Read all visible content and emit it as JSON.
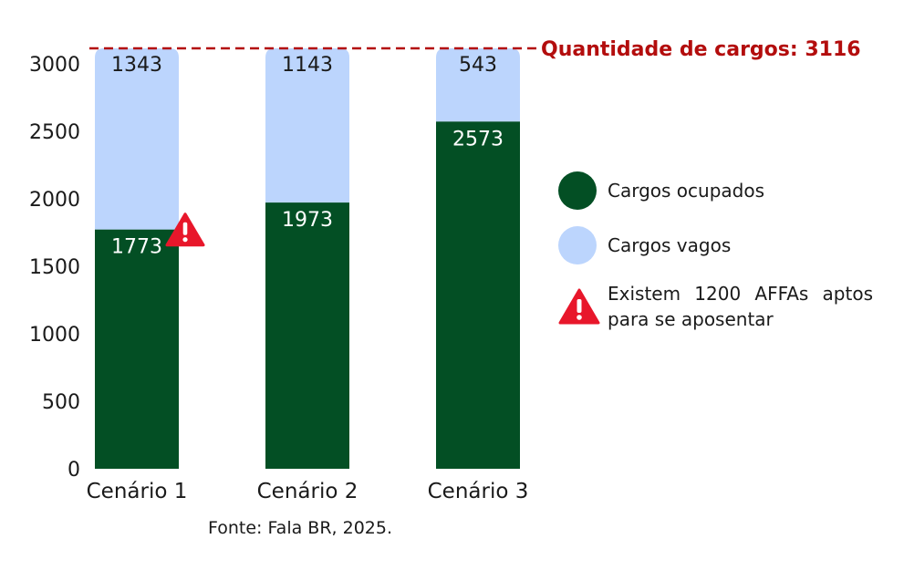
{
  "chart_data": {
    "type": "bar",
    "stacked": true,
    "categories": [
      "Cenário 1",
      "Cenário 2",
      "Cenário 3"
    ],
    "series": [
      {
        "name": "Cargos ocupados",
        "values": [
          1773,
          1973,
          2573
        ],
        "color": "#034f24"
      },
      {
        "name": "Cargos vagos",
        "values": [
          1343,
          1143,
          543
        ],
        "color": "#bcd5fd"
      }
    ],
    "ylim": [
      0,
      3116
    ],
    "yticks": [
      0,
      500,
      1000,
      1500,
      2000,
      2500,
      3000
    ],
    "reference_line": {
      "value": 3116,
      "label": "Quantidade de cargos: 3116",
      "color": "#b30d0d"
    },
    "warning_marker": {
      "category": "Cenário 1",
      "at_value": 1773,
      "color": "#e8172b",
      "icon": "warning-triangle-icon"
    },
    "grid": false,
    "legend_position": "right"
  },
  "legend": {
    "occupied": "Cargos ocupados",
    "vacant": "Cargos vagos",
    "warning": "Existem 1200 AFFAs aptos para se aposentar"
  },
  "source": "Fonte: Fala BR, 2025."
}
